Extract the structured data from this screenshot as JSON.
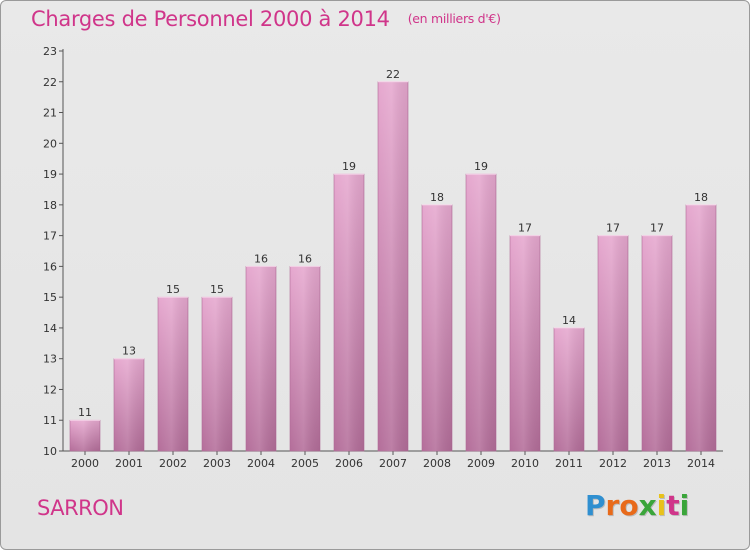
{
  "title": "Charges de Personnel 2000 à 2014",
  "subtitle": "(en milliers d'€)",
  "place": "SARRON",
  "logo": {
    "letters": [
      "P",
      "r",
      "o",
      "x",
      "i",
      "t",
      "i"
    ],
    "colors": [
      "#2f8fd0",
      "#e86a1a",
      "#e86a1a",
      "#3aa53a",
      "#e8c21a",
      "#d0358a",
      "#3aa53a"
    ]
  },
  "colors": {
    "bar_light": "#e6a8cf",
    "bar_dark": "#b46e9a",
    "accent": "#d0358a"
  },
  "chart_data": {
    "type": "bar",
    "categories": [
      "2000",
      "2001",
      "2002",
      "2003",
      "2004",
      "2005",
      "2006",
      "2007",
      "2008",
      "2009",
      "2010",
      "2011",
      "2012",
      "2013",
      "2014"
    ],
    "values": [
      11,
      13,
      15,
      15,
      16,
      16,
      19,
      22,
      18,
      19,
      17,
      14,
      17,
      17,
      18
    ],
    "data_labels": [
      "11",
      "13",
      "15",
      "15",
      "16",
      "16",
      "19",
      "22",
      "18",
      "19",
      "17",
      "14",
      "17",
      "17",
      "18"
    ],
    "title": "Charges de Personnel 2000 à 2014",
    "xlabel": "",
    "ylabel": "",
    "ylim": [
      10,
      23
    ],
    "yticks": [
      "10",
      "11",
      "12",
      "13",
      "14",
      "15",
      "16",
      "17",
      "18",
      "19",
      "20",
      "21",
      "22",
      "23"
    ],
    "grid": false,
    "legend": "none"
  }
}
